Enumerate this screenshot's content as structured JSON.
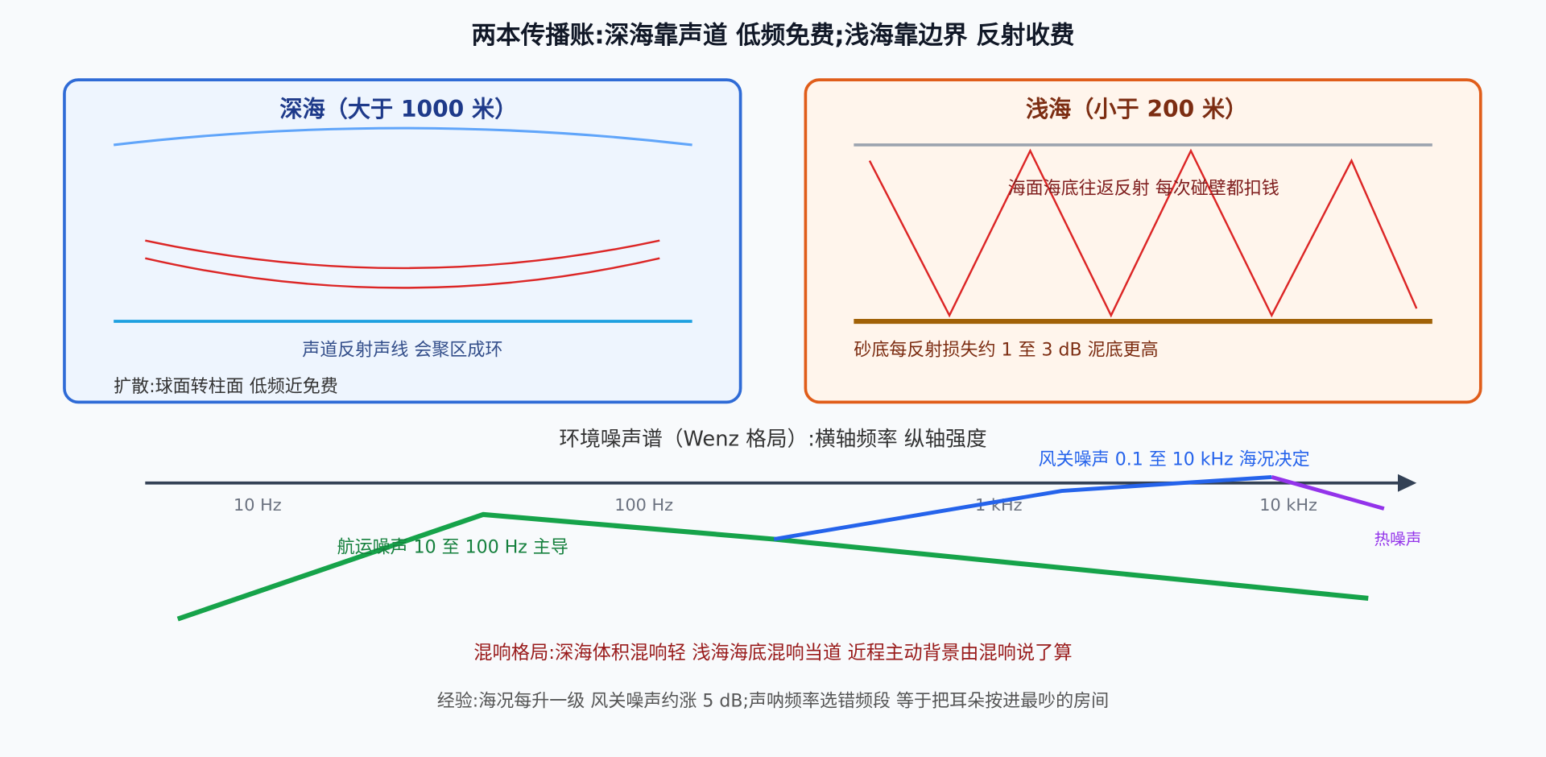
{
  "title": "两本传播账:深海靠声道 低频免费;浅海靠边界 反射收费",
  "deep": {
    "title": "深海（大于 1000 米）",
    "caption": "声道反射声线 会聚区成环",
    "note": "扩散:球面转柱面 低频近免费"
  },
  "shallow": {
    "title": "浅海（小于 200 米）",
    "caption": "海面海底往返反射 每次碰壁都扣钱",
    "note": "砂底每反射损失约 1 至 3 dB 泥底更高"
  },
  "spectrum": {
    "title": "环境噪声谱（Wenz 格局）:横轴频率 纵轴强度",
    "ticks": [
      "10 Hz",
      "100 Hz",
      "1 kHz",
      "10 kHz"
    ],
    "curves": {
      "shipping": "航运噪声 10 至 100 Hz 主导",
      "wind": "风关噪声 0.1 至 10 kHz 海况决定",
      "thermal": "热噪声"
    }
  },
  "reverb": "混响格局:深海体积混响轻 浅海海底混响当道 近程主动背景由混响说了算",
  "tip": "经验:海况每升一级 风关噪声约涨 5 dB;声呐频率选错频段 等于把耳朵按进最吵的房间"
}
